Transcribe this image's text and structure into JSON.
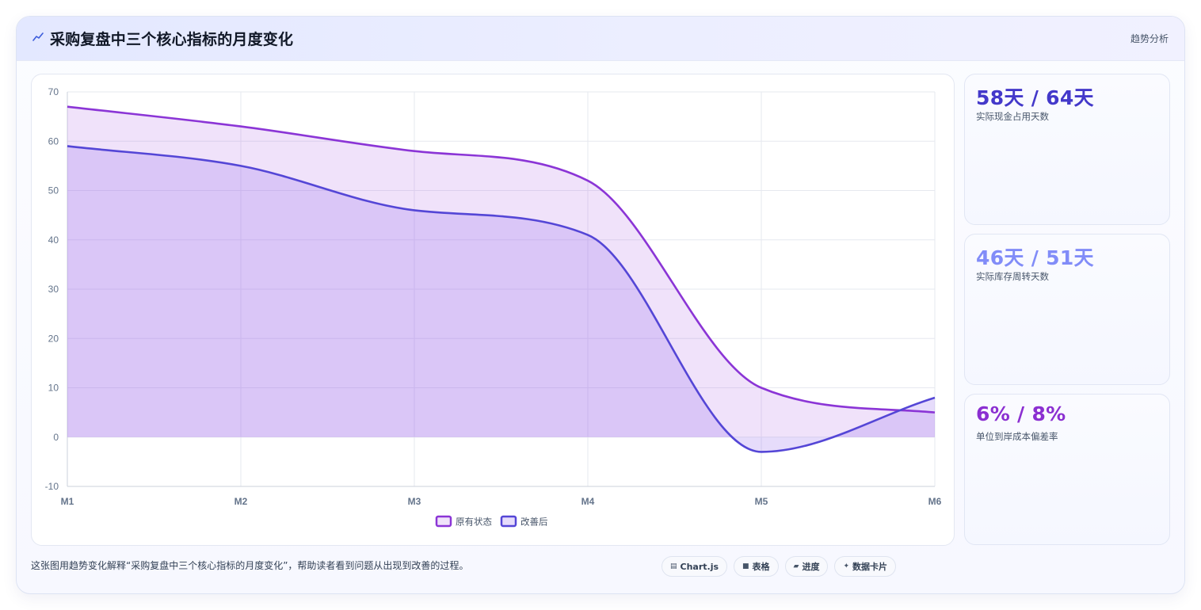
{
  "header": {
    "title": "采购复盘中三个核心指标的月度变化",
    "tag": "趋势分析",
    "icon": "trend-icon",
    "accent": "#3b5bdb"
  },
  "chart_data": {
    "type": "line",
    "categories": [
      "M1",
      "M2",
      "M3",
      "M4",
      "M5",
      "M6"
    ],
    "ylim": [
      -10,
      70
    ],
    "yticks": [
      -10,
      0,
      10,
      20,
      30,
      40,
      50,
      60,
      70
    ],
    "grid": true,
    "filled": true,
    "smooth": true,
    "legend_position": "bottom",
    "series": [
      {
        "name": "原有状态",
        "values": [
          67,
          63,
          58,
          52,
          10,
          5
        ],
        "color": "#8b35d6",
        "fill": "rgba(178,108,228,0.20)"
      },
      {
        "name": "改善后",
        "values": [
          59,
          55,
          46,
          41,
          -3,
          8
        ],
        "color": "#5446d6",
        "fill": "rgba(150,108,238,0.24)"
      }
    ]
  },
  "kpis": [
    {
      "value": "58天 / 64天",
      "label": "实际现金占用天数",
      "color": "#4338ca"
    },
    {
      "value": "46天 / 51天",
      "label": "实际库存周转天数",
      "color": "#818cf8"
    },
    {
      "value": "6% / 8%",
      "label": "单位到岸成本偏差率",
      "color": "#8b2fd1"
    }
  ],
  "footnote": "这张图用趋势变化解释“采购复盘中三个核心指标的月度变化”，帮助读者看到问题从出现到改善的过程。",
  "pills": [
    {
      "icon": "chart-icon",
      "glyph": "▤",
      "label": "Chart.js"
    },
    {
      "icon": "table-icon",
      "glyph": "■",
      "label": "表格"
    },
    {
      "icon": "progress-icon",
      "glyph": "▰",
      "label": "进度"
    },
    {
      "icon": "sparkle-icon",
      "glyph": "✦",
      "label": "数据卡片"
    }
  ]
}
